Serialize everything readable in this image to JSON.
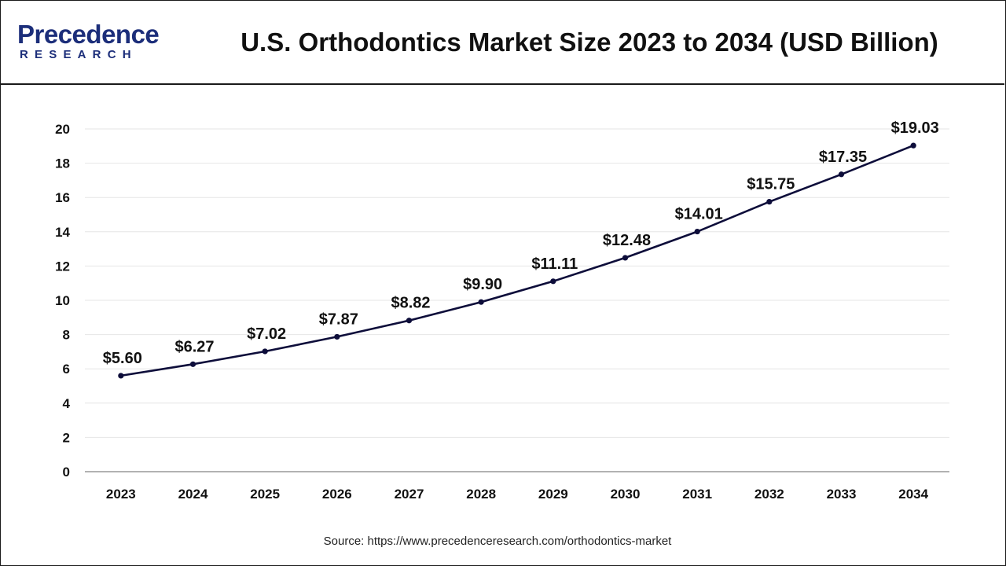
{
  "logo": {
    "name": "Precedence",
    "sub": "RESEARCH"
  },
  "header": {
    "title": "U.S.  Orthodontics Market Size 2023 to 2034 (USD Billion)"
  },
  "source": "Source: https://www.precedenceresearch.com/orthodontics-market",
  "colors": {
    "line": "#0d0d3a",
    "grid": "#e6e6e6",
    "axis": "#999999",
    "brand": "#1c2e7a"
  },
  "chart_data": {
    "type": "line",
    "title": "U.S.  Orthodontics Market Size 2023 to 2034 (USD Billion)",
    "xlabel": "",
    "ylabel": "",
    "categories": [
      "2023",
      "2024",
      "2025",
      "2026",
      "2027",
      "2028",
      "2029",
      "2030",
      "2031",
      "2032",
      "2033",
      "2034"
    ],
    "series": [
      {
        "values": [
          5.6,
          6.27,
          7.02,
          7.87,
          8.82,
          9.9,
          11.11,
          12.48,
          14.01,
          15.75,
          17.35,
          19.03
        ],
        "labels": [
          "$5.60",
          "$6.27",
          "$7.02",
          "$7.87",
          "$8.82",
          "$9.90",
          "$11.11",
          "$12.48",
          "$14.01",
          "$15.75",
          "$17.35",
          "$19.03"
        ]
      }
    ],
    "ylim": [
      0,
      20
    ],
    "yticks": [
      0,
      2,
      4,
      6,
      8,
      10,
      12,
      14,
      16,
      18,
      20
    ],
    "grid": true,
    "legend": "none"
  }
}
